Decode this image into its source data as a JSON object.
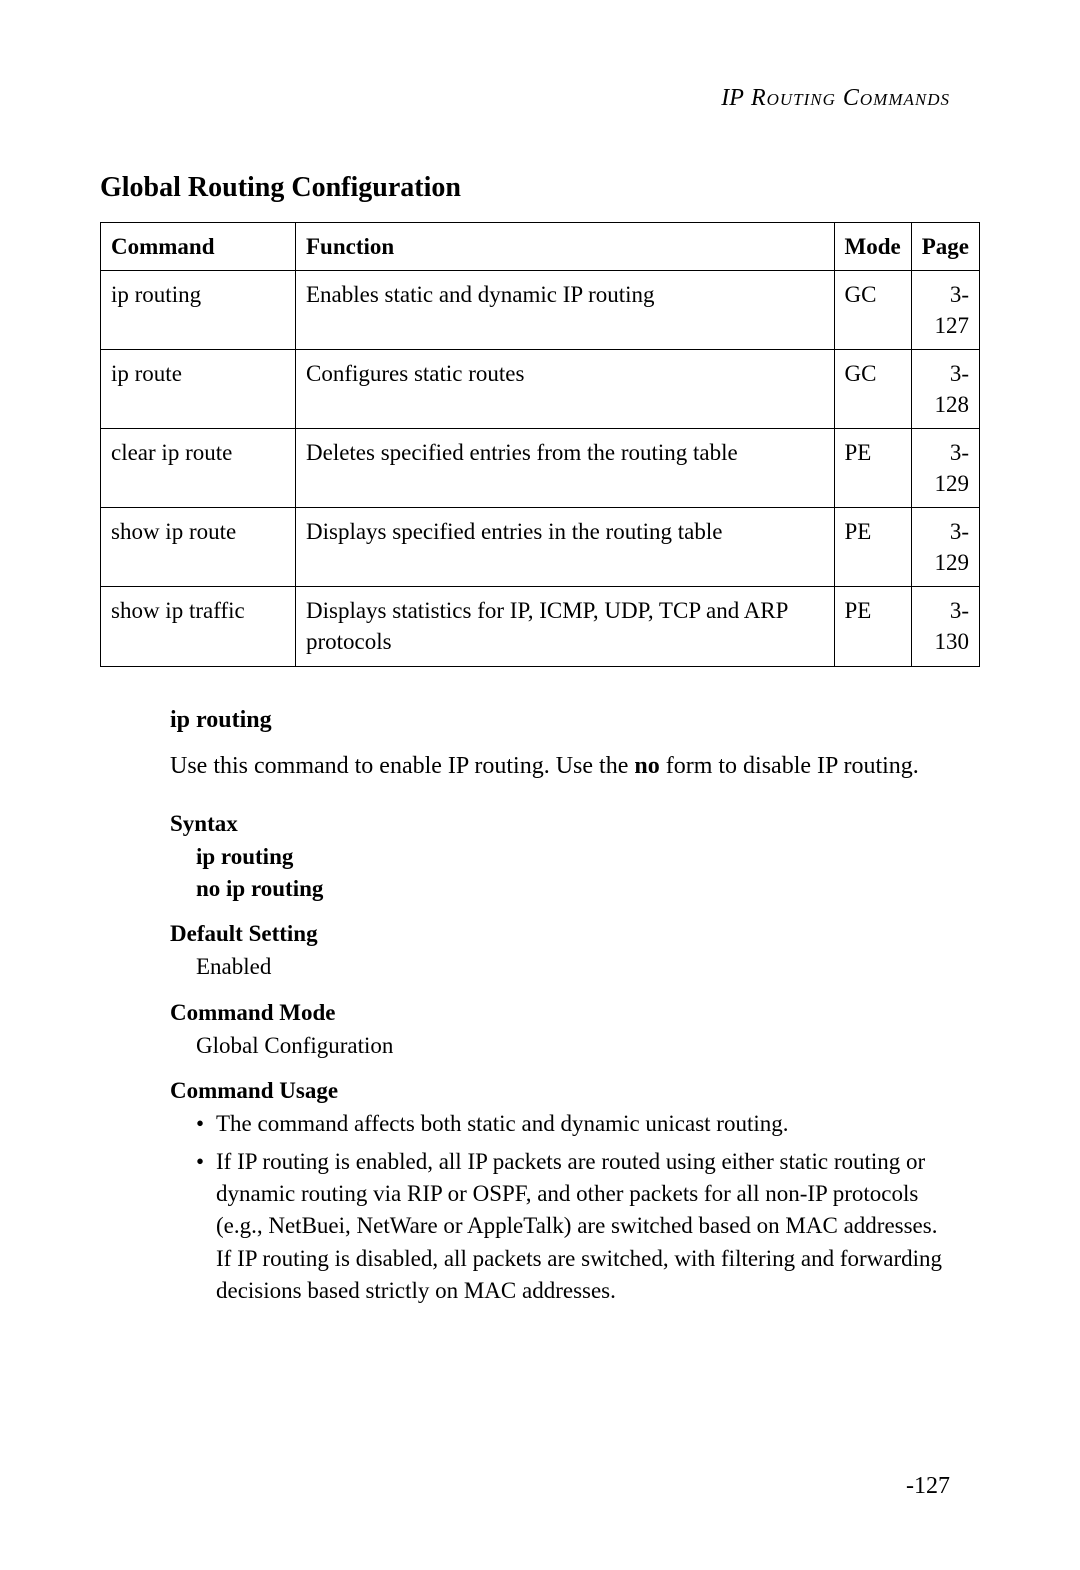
{
  "header": {
    "ip": "IP",
    "rest": " Routing Commands"
  },
  "section_title": "Global Routing Configuration",
  "table": {
    "headers": {
      "command": "Command",
      "function": "Function",
      "mode": "Mode",
      "page": "Page"
    },
    "rows": [
      {
        "command": "ip routing",
        "function": "Enables static and dynamic IP routing",
        "mode": "GC",
        "page": "3-127"
      },
      {
        "command": "ip route",
        "function": "Configures static routes",
        "mode": "GC",
        "page": "3-128"
      },
      {
        "command": "clear ip route",
        "function": "Deletes specified entries from the routing table",
        "mode": "PE",
        "page": "3-129"
      },
      {
        "command": "show ip route",
        "function": "Displays specified entries in the routing table",
        "mode": "PE",
        "page": "3-129"
      },
      {
        "command": "show ip traffic",
        "function": "Displays statistics for IP, ICMP, UDP, TCP and ARP protocols",
        "mode": "PE",
        "page": "3-130"
      }
    ]
  },
  "detail": {
    "name": "ip routing",
    "desc_pre": "Use this command to enable IP routing. Use the ",
    "desc_bold": "no",
    "desc_post": " form to disable IP routing.",
    "syntax_label": "Syntax",
    "syntax_line1": "ip routing",
    "syntax_line2": "no ip routing",
    "default_label": "Default Setting",
    "default_value": "Enabled",
    "mode_label": "Command Mode",
    "mode_value": "Global Configuration",
    "usage_label": "Command Usage",
    "usage_items": [
      "The command affects both static and dynamic unicast routing.",
      "If IP routing is enabled, all IP packets are routed using either static routing or dynamic routing via RIP or OSPF, and other packets for all non-IP protocols (e.g., NetBuei, NetWare or AppleTalk) are switched based on MAC addresses. If IP routing is disabled, all packets are switched, with filtering and forwarding decisions based strictly on MAC addresses."
    ]
  },
  "page_number": "-127",
  "style": {
    "font_family": "Garamond, Georgia, serif",
    "body_bg": "#ffffff",
    "text_color": "#000000",
    "border_color": "#000000",
    "header_fontsize": 24,
    "section_title_fontsize": 28,
    "table_fontsize": 23,
    "body_fontsize": 24,
    "col_widths": {
      "command": 195,
      "mode": 65,
      "page": 65
    }
  }
}
